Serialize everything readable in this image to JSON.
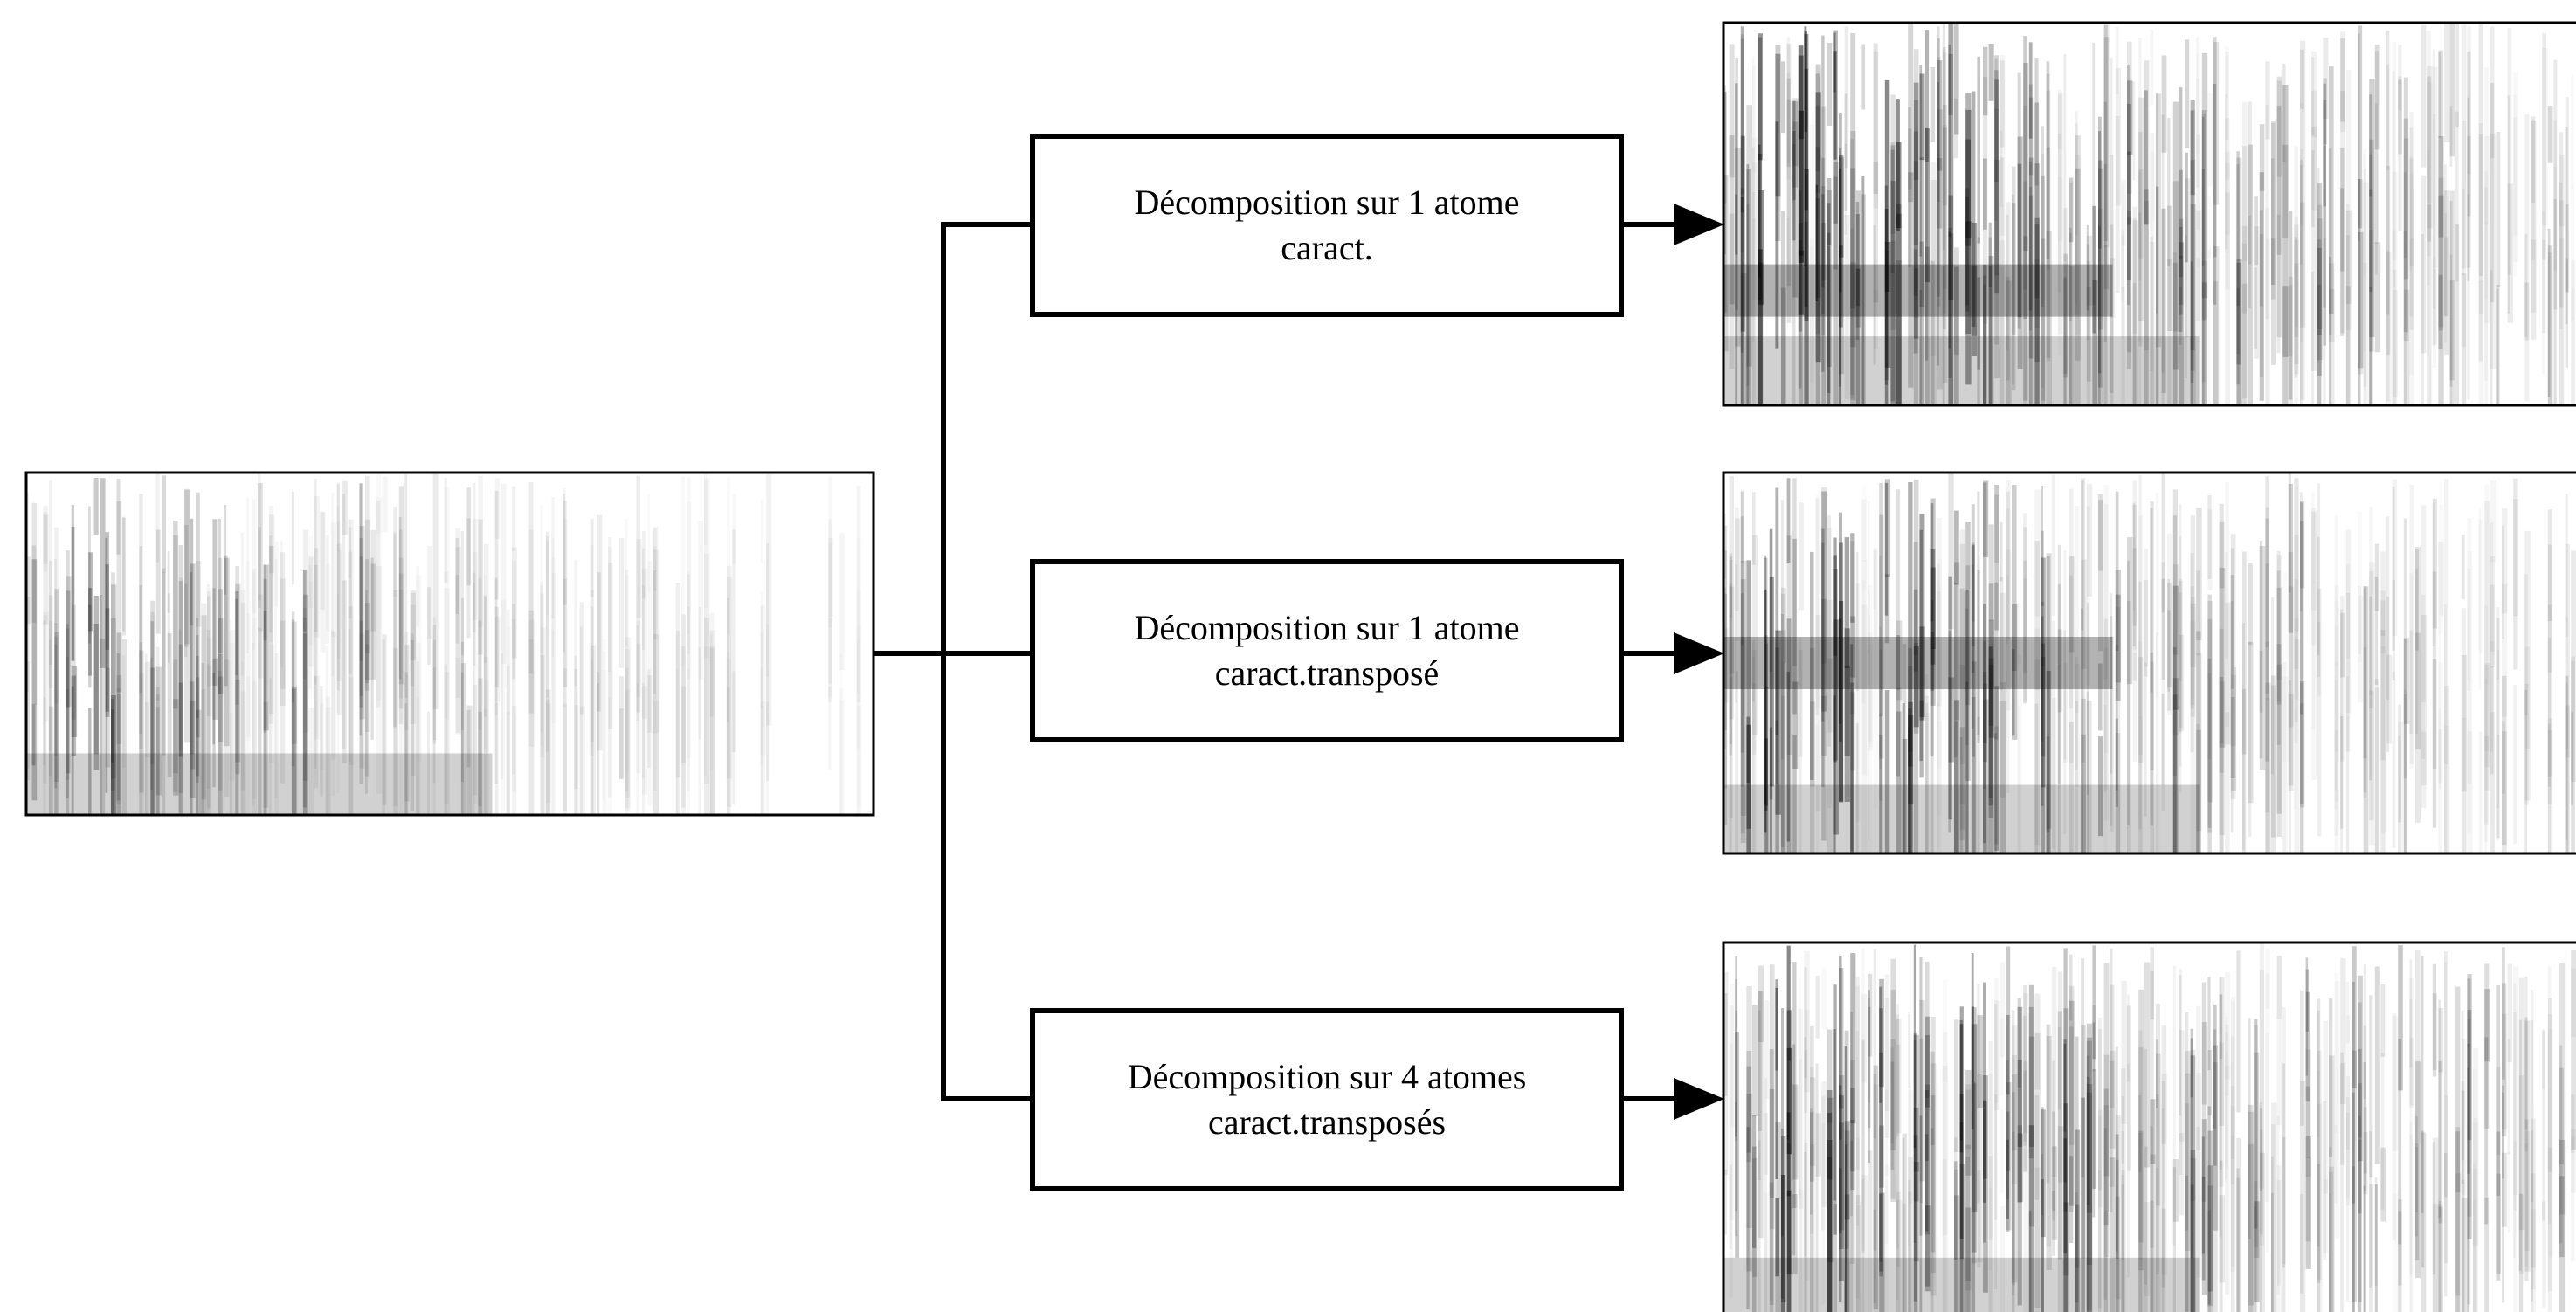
{
  "boxes": [
    {
      "line1": "Décomposition sur  1 atome",
      "line2": "caract."
    },
    {
      "line1": "Décomposition sur 1 atome",
      "line2": "caract.transposé"
    },
    {
      "line1": "Décomposition sur 4 atomes",
      "line2": "caract.transposés"
    }
  ],
  "spectrograms": [
    {
      "id": "input",
      "seed": 11,
      "density": 0.55,
      "decay": 0.0018,
      "band_row": -1
    },
    {
      "id": "output-1",
      "seed": 23,
      "density": 0.9,
      "decay": 0.0012,
      "band_row": 0.7
    },
    {
      "id": "output-2",
      "seed": 37,
      "density": 0.8,
      "decay": 0.0014,
      "band_row": 0.5
    },
    {
      "id": "output-3",
      "seed": 53,
      "density": 0.75,
      "decay": 0.0009,
      "band_row": -1
    }
  ],
  "colors": {
    "stroke": "#000000",
    "background": "#ffffff"
  },
  "icons": [
    "arrow-right-icon"
  ]
}
